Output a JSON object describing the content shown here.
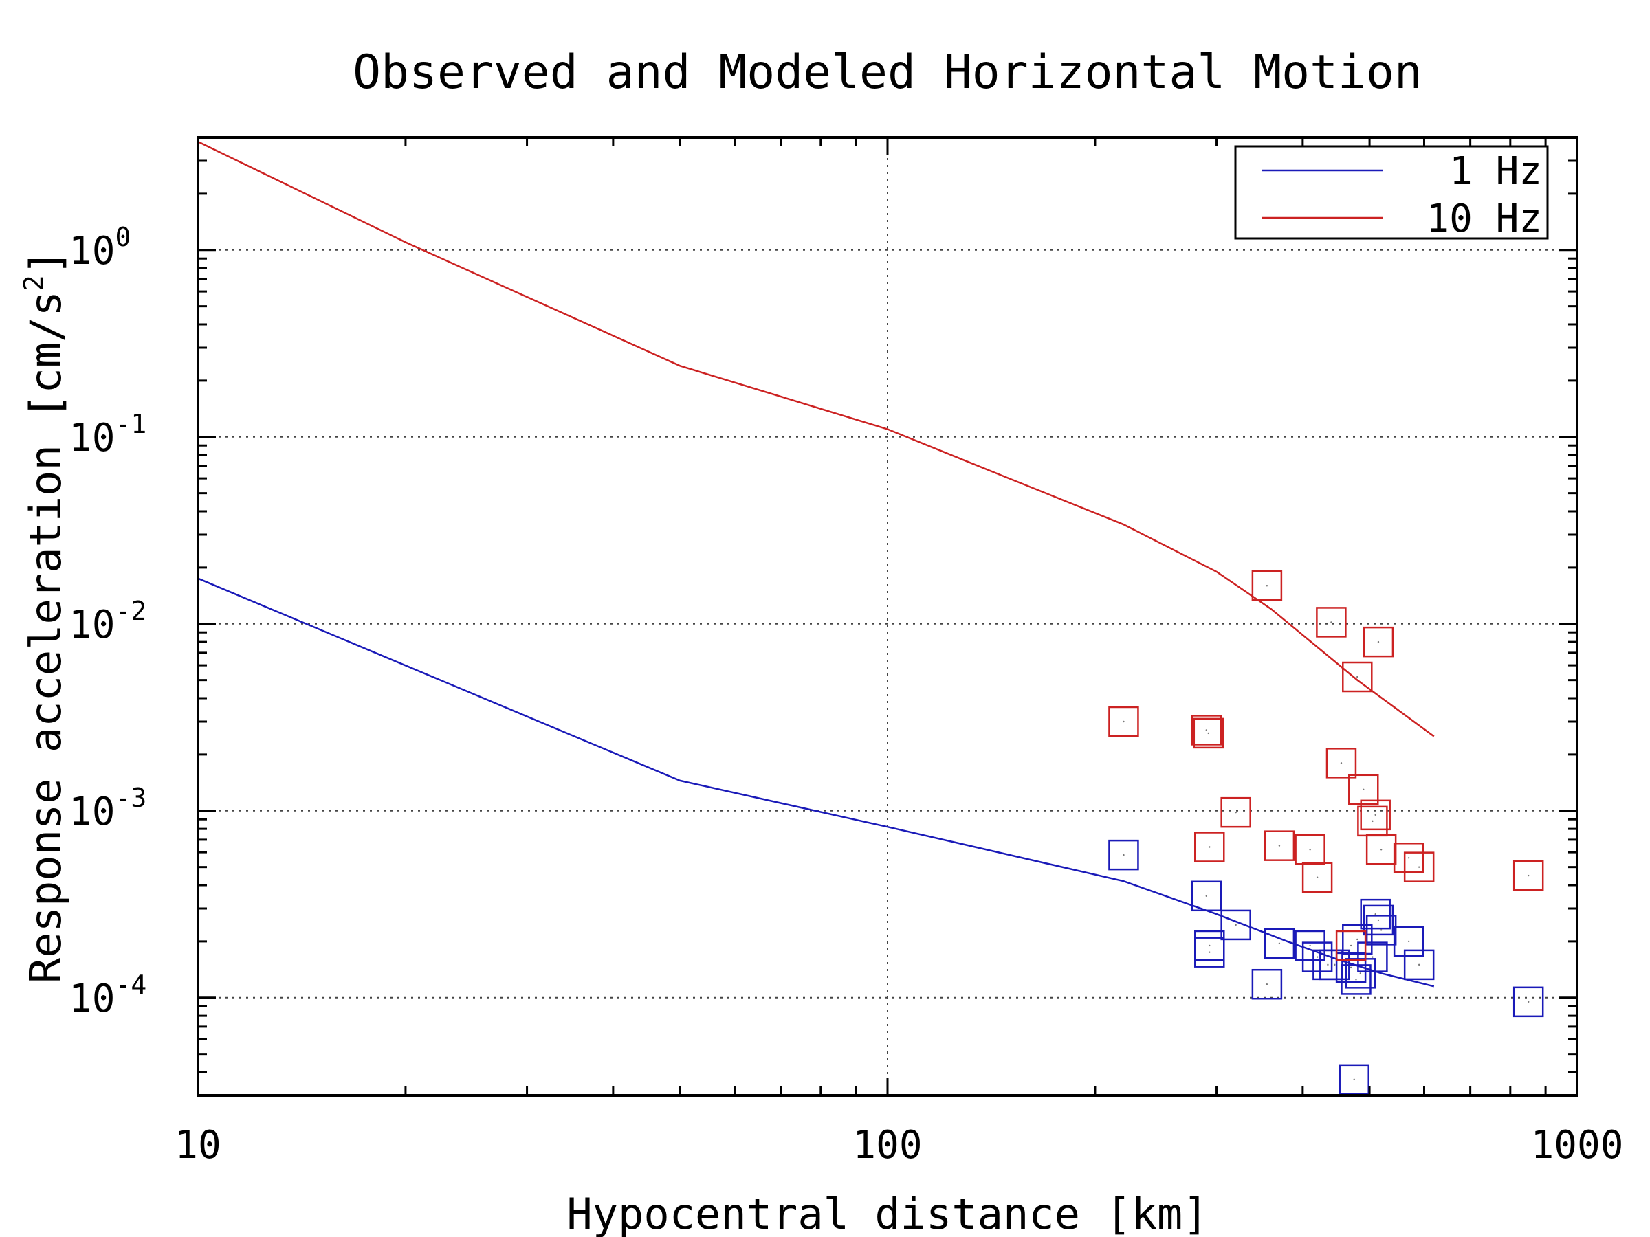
{
  "chart_data": {
    "type": "scatter",
    "title": "Observed and Modeled Horizontal Motion",
    "xlabel": "Hypocentral distance [km]",
    "ylabel": {
      "main": "Response acceleration [cm/s",
      "sup": "2",
      "end": "]"
    },
    "xscale": "log",
    "yscale": "log",
    "xlim": [
      10,
      1000
    ],
    "ylim": [
      3e-05,
      4
    ],
    "x_ticks": [
      {
        "value": 10,
        "label": "10"
      },
      {
        "value": 100,
        "label": "100"
      },
      {
        "value": 1000,
        "label": "1000"
      }
    ],
    "y_ticks": [
      {
        "value": 1,
        "base": "10",
        "exp": "0"
      },
      {
        "value": 0.1,
        "base": "10",
        "exp": "-1"
      },
      {
        "value": 0.01,
        "base": "10",
        "exp": "-2"
      },
      {
        "value": 0.001,
        "base": "10",
        "exp": "-3"
      },
      {
        "value": 0.0001,
        "base": "10",
        "exp": "-4"
      }
    ],
    "grid": true,
    "legend_position": "top-right",
    "series": [
      {
        "name": "1 Hz",
        "color": "#1a1ab8",
        "model_line": {
          "x": [
            10,
            50,
            100,
            220,
            300,
            380,
            450,
            520,
            620
          ],
          "y": [
            0.0175,
            0.00145,
            0.00082,
            0.00042,
            0.00028,
            0.0002,
            0.00016,
            0.000135,
            0.000115
          ]
        },
        "observed": {
          "x": [
            220,
            290,
            293,
            293,
            320,
            355,
            370,
            410,
            420,
            435,
            445,
            470,
            475,
            478,
            480,
            485,
            505,
            510,
            515,
            520,
            570,
            590,
            850
          ],
          "y": [
            0.00058,
            0.00035,
            0.00019,
            0.000175,
            0.000245,
            0.000118,
            0.000195,
            0.00019,
            0.000165,
            0.00015,
            0.00015,
            0.000145,
            3.65e-05,
            0.000125,
            0.000205,
            0.000135,
            0.000165,
            0.00028,
            0.00026,
            0.00023,
            0.0002,
            0.00015,
            9.5e-05
          ]
        }
      },
      {
        "name": "10 Hz",
        "color": "#cc2222",
        "model_line": {
          "x": [
            10,
            20,
            50,
            100,
            150,
            220,
            300,
            360,
            480,
            620
          ],
          "y": [
            3.8,
            1.1,
            0.24,
            0.11,
            0.06,
            0.034,
            0.019,
            0.012,
            0.005,
            0.0025
          ]
        },
        "observed": {
          "x": [
            220,
            290,
            292,
            293,
            320,
            355,
            370,
            410,
            420,
            440,
            455,
            470,
            480,
            490,
            505,
            510,
            515,
            520,
            570,
            590,
            850
          ],
          "y": [
            0.003,
            0.0027,
            0.0026,
            0.00064,
            0.00098,
            0.016,
            0.00065,
            0.00062,
            0.00044,
            0.0102,
            0.0018,
            0.00019,
            0.0052,
            0.0013,
            0.00088,
            0.00095,
            0.008,
            0.00062,
            0.00056,
            0.0005,
            0.00045
          ]
        }
      }
    ]
  }
}
